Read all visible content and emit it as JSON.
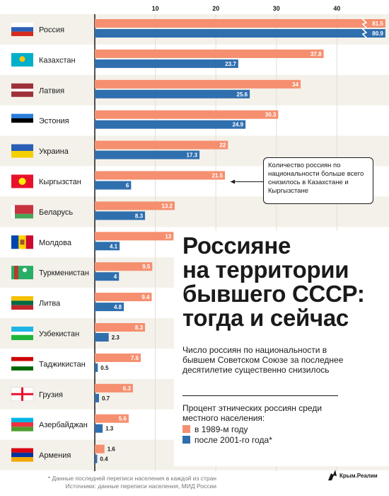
{
  "chart_data": {
    "type": "bar",
    "orientation": "horizontal",
    "xlim": [
      0,
      48
    ],
    "x_ticks": [
      10,
      20,
      30,
      40
    ],
    "categories": [
      "Россия",
      "Казахстан",
      "Латвия",
      "Эстония",
      "Украина",
      "Кыргызстан",
      "Беларусь",
      "Молдова",
      "Туркменистан",
      "Литва",
      "Узбекистан",
      "Таджикистан",
      "Грузия",
      "Азербайджан",
      "Армения"
    ],
    "series": [
      {
        "name": "в 1989-м году",
        "color": "#f58f6f",
        "values": [
          81.5,
          37.8,
          34,
          30.3,
          22,
          21.5,
          13.2,
          13,
          9.5,
          9.4,
          8.3,
          7.6,
          6.3,
          5.6,
          1.6
        ]
      },
      {
        "name": "после 2001-го года*",
        "color": "#2f6fae",
        "values": [
          80.9,
          23.7,
          25.6,
          24.9,
          17.3,
          6,
          8.3,
          4.1,
          4,
          4.8,
          2.3,
          0.5,
          0.7,
          1.3,
          0.4
        ]
      }
    ],
    "axis_break": "Россия",
    "grid": true
  },
  "title": "Россияне\nна территории\nбывшего СССР:\nтогда и сейчас",
  "subtitle": "Число россиян по национальности в бывшем Советском Союзе за последнее десятилетие существенно снизилось",
  "legend_title": "Процент этнических россиян среди местного населения:",
  "callout": "Количество россиян по национальности больше всего снизилось в Казахстане и Кыргызстане",
  "footnote": "* Данные последней переписи населения в каждой из стран\nИсточники: данные переписи населения, МИД России",
  "logo_text": "Крым.Реалии",
  "colors": {
    "orange": "#f58f6f",
    "blue": "#2f6fae",
    "stripe": "#f4f1ea"
  },
  "flags": [
    "flag-russia",
    "flag-kazakhstan",
    "flag-latvia",
    "flag-estonia",
    "flag-ukraine",
    "flag-kyrgyzstan",
    "flag-belarus",
    "flag-moldova",
    "flag-turkmenistan",
    "flag-lithuania",
    "flag-uzbekistan",
    "flag-tajikistan",
    "flag-georgia",
    "flag-azerbaijan",
    "flag-armenia"
  ]
}
